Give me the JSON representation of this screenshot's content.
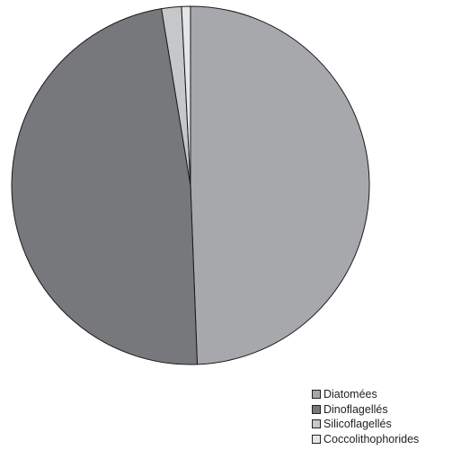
{
  "chart_data": {
    "type": "pie",
    "title": "",
    "legend_position": "bottom-right",
    "series": [
      {
        "name": "Diatomées",
        "value": 49.4,
        "color": "#a7a8ab"
      },
      {
        "name": "Dinoflagellés",
        "value": 48.0,
        "color": "#77787b"
      },
      {
        "name": "Silicoflagellés",
        "value": 1.8,
        "color": "#c6c7c9"
      },
      {
        "name": "Coccolithophorides",
        "value": 0.8,
        "color": "#e4e5e6"
      }
    ]
  }
}
